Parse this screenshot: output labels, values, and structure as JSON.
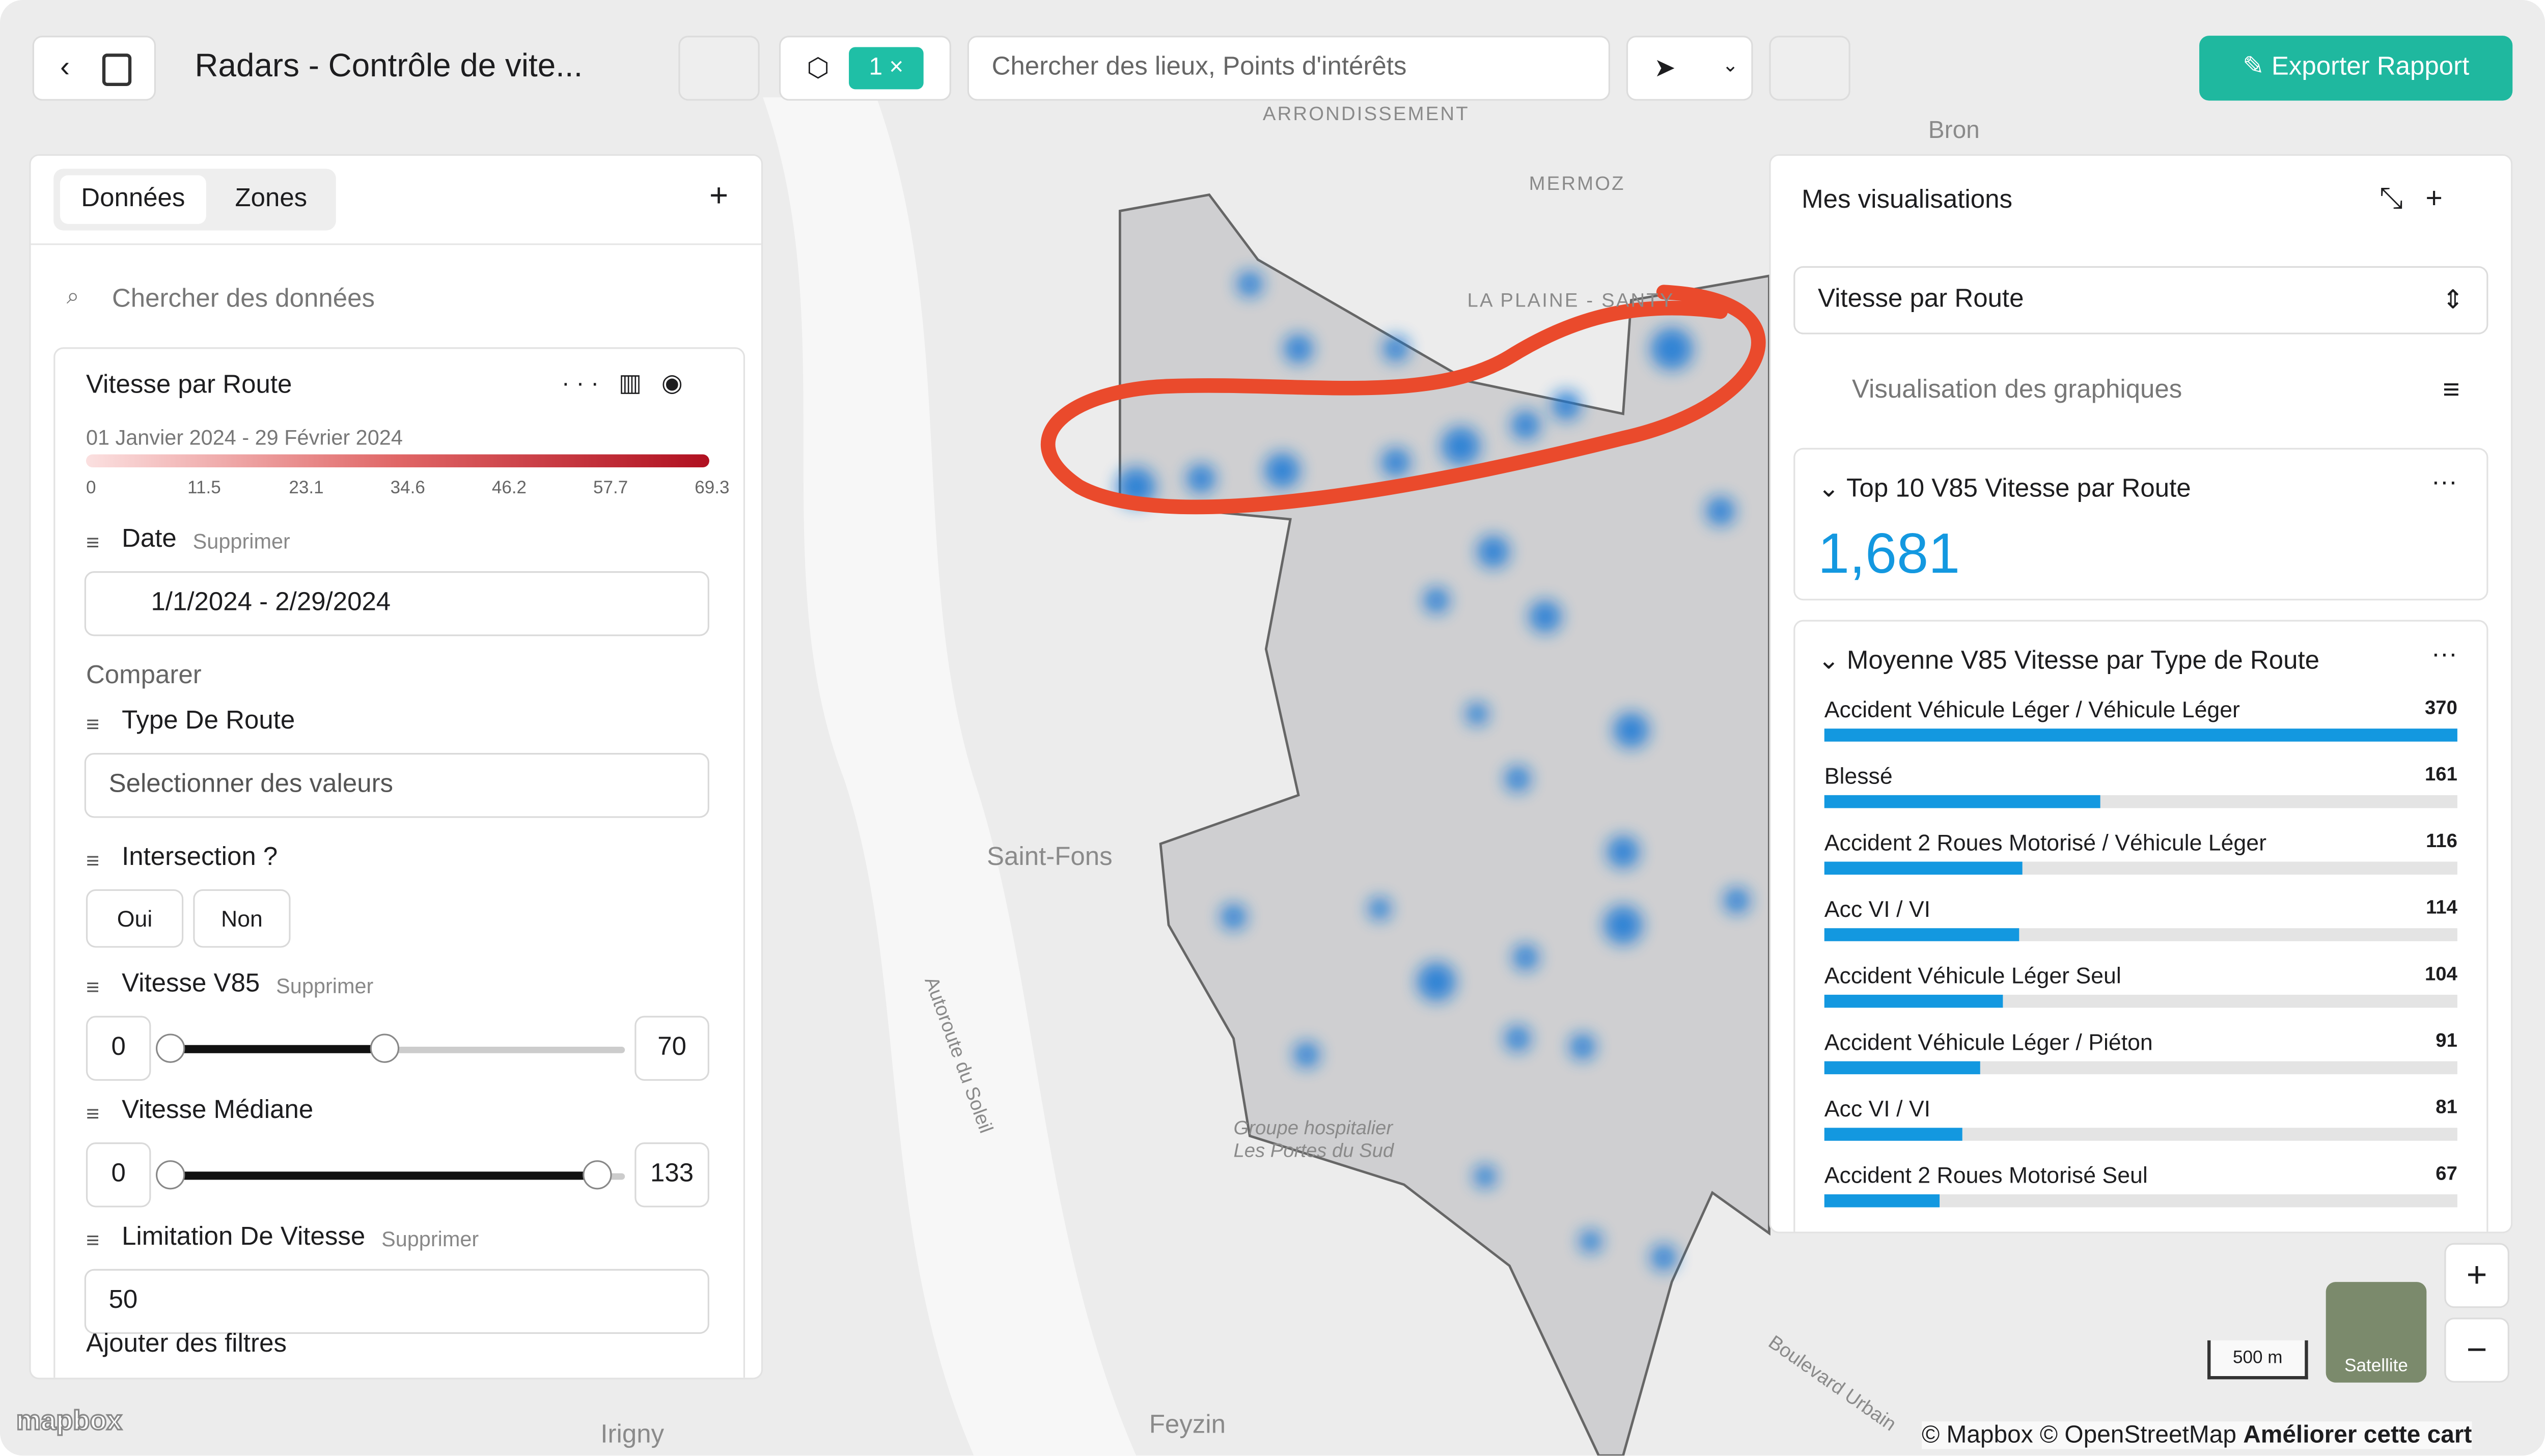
{
  "header": {
    "title": "Radars - Contrôle de vite...",
    "filter_count": "1",
    "search_placeholder": "Chercher des lieux, Points d'intérêts",
    "export_button": "Exporter Rapport"
  },
  "left_panel": {
    "tabs": [
      "Données",
      "Zones"
    ],
    "search_placeholder": "Chercher des données",
    "layer": {
      "title": "Vitesse par Route",
      "date_range": "01 Janvier 2024 - 29 Février 2024",
      "legend_ticks": [
        0,
        11.5,
        23.1,
        34.6,
        46.2,
        57.7,
        69.3
      ]
    },
    "filters": [
      {
        "label": "Date",
        "action": "Supprimer",
        "value": "1/1/2024 - 2/29/2024"
      },
      {
        "label": "Comparer"
      },
      {
        "label": "Type De Route",
        "placeholder": "Selectionner des valeurs"
      },
      {
        "label": "Intersection ?",
        "options": [
          "Oui",
          "Non"
        ]
      },
      {
        "label": "Vitesse V85",
        "action": "Supprimer",
        "min": "0",
        "max": "70"
      },
      {
        "label": "Vitesse Médiane",
        "min": "0",
        "max": "133"
      },
      {
        "label": "Limitation De Vitesse",
        "action": "Supprimer",
        "value": "50"
      }
    ],
    "add_filters": "Ajouter des filtres"
  },
  "right_panel": {
    "title": "Mes visualisations",
    "selected": "Vitesse par Route",
    "search_placeholder": "Visualisation des graphiques",
    "kpi_card": {
      "title": "Top 10 V85 Vitesse par Route",
      "value": "1,681"
    },
    "bar_card": {
      "title": "Moyenne V85 Vitesse par Type de Route",
      "categories": [
        "Accident Véhicule Léger / Véhicule Léger",
        "Blessé",
        "Accident 2 Roues Motorisé / Véhicule Léger",
        "Acc VI / VI",
        "Accident Véhicule Léger Seul",
        "Accident Véhicule Léger / Piéton",
        "Acc VI / VI",
        "Accident 2 Roues Motorisé Seul"
      ],
      "values": [
        370,
        161,
        116,
        114,
        104,
        91,
        81,
        67
      ]
    }
  },
  "map": {
    "labels": [
      "Bron",
      "MERMOZ",
      "LA PLAINE - SANTY",
      "ARRONDISSEMENT",
      "Saint-Fons",
      "Autoroute du Soleil",
      "Groupe hospitalier Les Portes du Sud",
      "Feyzin",
      "Irigny",
      "Boulevard Urbain"
    ],
    "scale": "500 m",
    "satellite": "Satellite",
    "logo": "mapbox",
    "attribution": "© Mapbox © OpenStreetMap",
    "improve": "Améliorer cette cart"
  }
}
